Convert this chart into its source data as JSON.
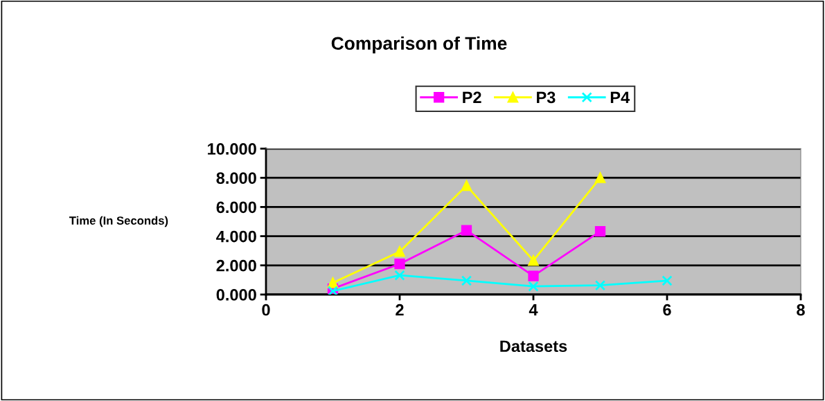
{
  "chart_data": {
    "type": "line",
    "title": "Comparison of Time",
    "xlabel": "Datasets",
    "ylabel": "Time (In Seconds)",
    "series": [
      {
        "name": "P2",
        "color": "#ff00ff",
        "marker": "square",
        "x": [
          1,
          2,
          3,
          4,
          5
        ],
        "values": [
          0.4,
          2.1,
          4.4,
          1.27,
          4.33
        ]
      },
      {
        "name": "P3",
        "color": "#ffff00",
        "marker": "triangle",
        "x": [
          1,
          2,
          3,
          4,
          5
        ],
        "values": [
          0.8,
          2.94,
          7.46,
          2.33,
          8.0
        ]
      },
      {
        "name": "P4",
        "color": "#00ffff",
        "marker": "cross",
        "x": [
          1,
          2,
          3,
          4,
          5,
          6
        ],
        "values": [
          0.24,
          1.32,
          0.95,
          0.56,
          0.63,
          0.95
        ]
      }
    ],
    "xlim": [
      0,
      8
    ],
    "xticks": [
      0,
      2,
      4,
      6,
      8
    ],
    "ylim": [
      0,
      10
    ],
    "yticks": [
      {
        "value": 0,
        "label": "0.000"
      },
      {
        "value": 2,
        "label": "2.000"
      },
      {
        "value": 4,
        "label": "4.000"
      },
      {
        "value": 6,
        "label": "6.000"
      },
      {
        "value": 8,
        "label": "8.000"
      },
      {
        "value": 10,
        "label": "10.000"
      }
    ],
    "grid": "y",
    "legend": "top"
  }
}
